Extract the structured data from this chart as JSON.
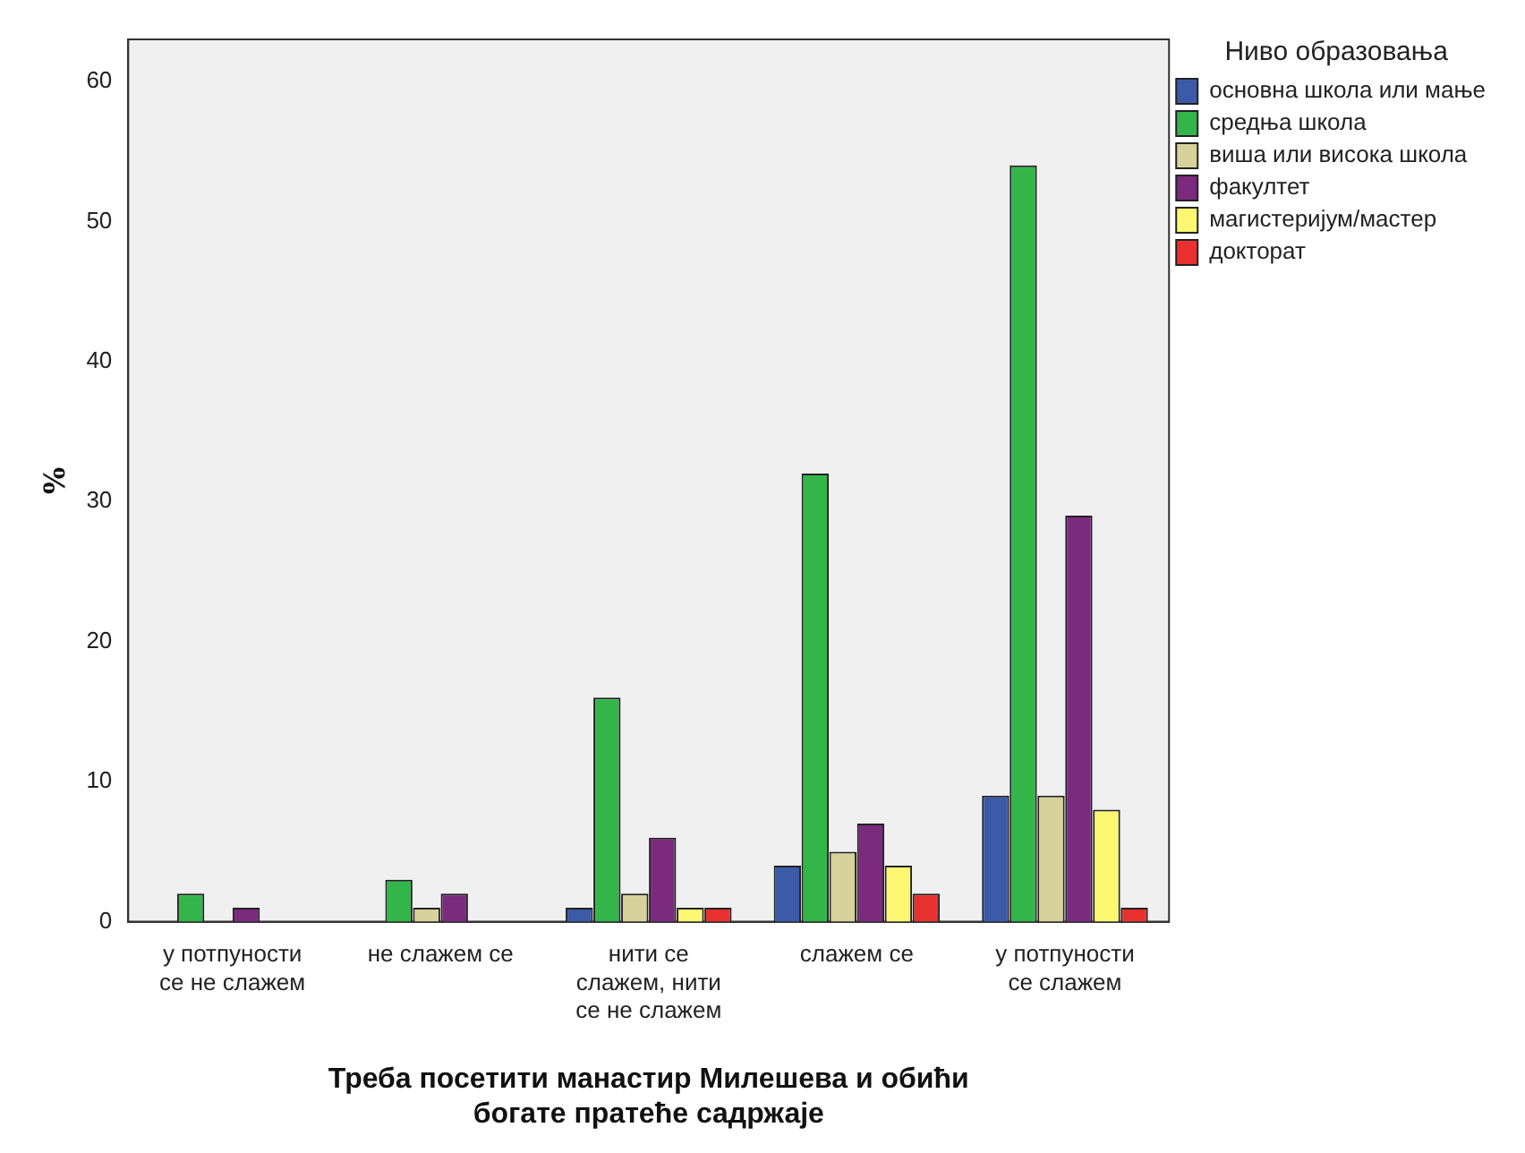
{
  "chart_data": {
    "type": "bar",
    "xlabel": "Треба посетити манастир Милешева и обићи богате пратеће садржаје",
    "ylabel": "%",
    "legend_title": "Ниво образовања",
    "categories": [
      "у потпуности се не слажем",
      "не слажем се",
      "нити се слажем, нити се не слажем",
      "слажем се",
      "у потпуности се слажем"
    ],
    "series": [
      {
        "name": "основна школа или мање",
        "color": "#3b5aa8",
        "values": [
          null,
          null,
          1,
          4,
          9
        ]
      },
      {
        "name": "средња школа",
        "color": "#33b54a",
        "values": [
          2,
          3,
          16,
          32,
          54
        ]
      },
      {
        "name": "виша или висока школа",
        "color": "#d6d29a",
        "values": [
          null,
          1,
          2,
          5,
          9
        ]
      },
      {
        "name": "факултет",
        "color": "#7b2a7e",
        "values": [
          1,
          2,
          6,
          7,
          29
        ]
      },
      {
        "name": "магистеријум/мастер",
        "color": "#fbf770",
        "values": [
          null,
          null,
          1,
          4,
          8
        ]
      },
      {
        "name": "докторат",
        "color": "#e8312f",
        "values": [
          null,
          null,
          1,
          2,
          1
        ]
      }
    ],
    "ylim": [
      0,
      63
    ],
    "yticks": [
      0,
      10,
      20,
      30,
      40,
      50,
      60
    ],
    "grid": false,
    "legend": "top right"
  }
}
